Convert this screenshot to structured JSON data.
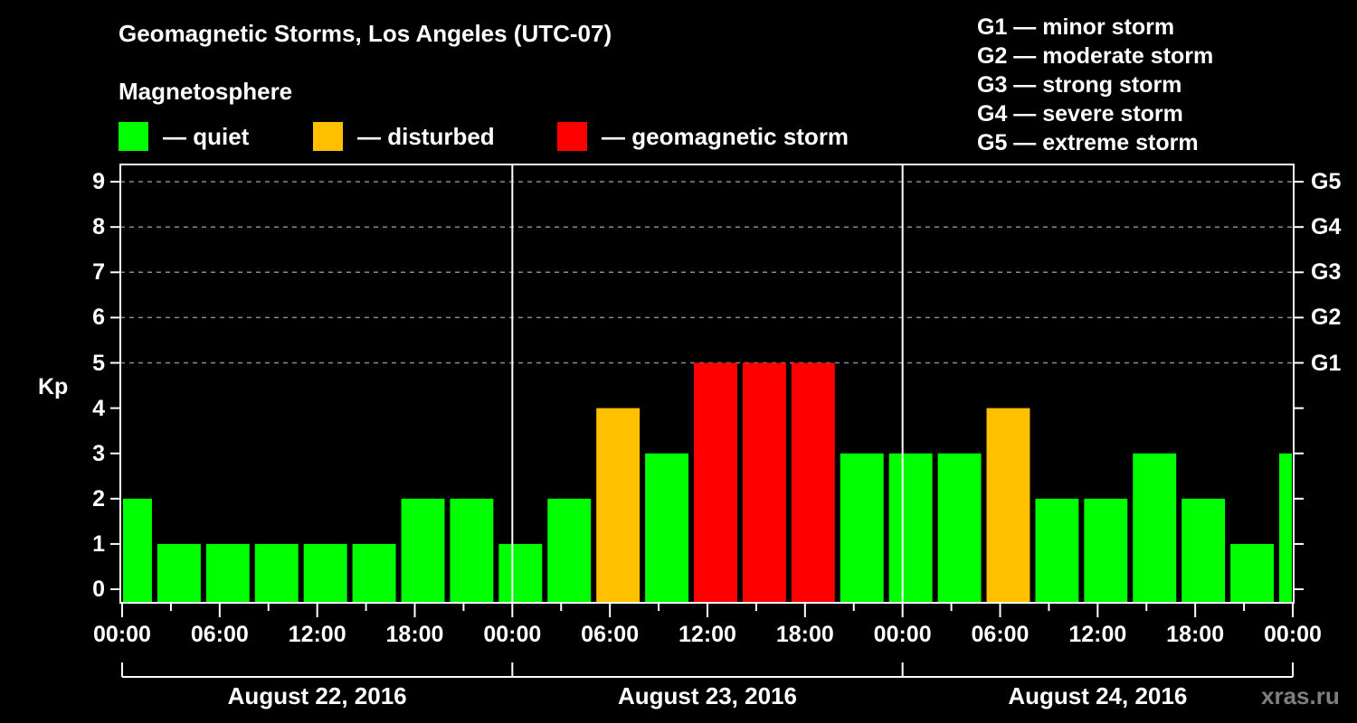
{
  "header": {
    "title": "Geomagnetic Storms, Los Angeles (UTC-07)",
    "subtitle": "Magnetosphere"
  },
  "legend": [
    {
      "label": "— quiet",
      "color": "#00ff00"
    },
    {
      "label": "— disturbed",
      "color": "#ffc000"
    },
    {
      "label": "— geomagnetic storm",
      "color": "#ff0000"
    }
  ],
  "g_scale": [
    "G1 — minor storm",
    "G2 — moderate storm",
    "G3 — strong storm",
    "G4 — severe storm",
    "G5 — extreme storm"
  ],
  "axis": {
    "ylabel": "Kp",
    "yticks": [
      "0",
      "1",
      "2",
      "3",
      "4",
      "5",
      "6",
      "7",
      "8",
      "9"
    ],
    "right_ticks": [
      {
        "kp": 5,
        "label": "G1"
      },
      {
        "kp": 6,
        "label": "G2"
      },
      {
        "kp": 7,
        "label": "G3"
      },
      {
        "kp": 8,
        "label": "G4"
      },
      {
        "kp": 9,
        "label": "G5"
      }
    ],
    "xticks": [
      "00:00",
      "06:00",
      "12:00",
      "18:00",
      "00:00",
      "06:00",
      "12:00",
      "18:00",
      "00:00",
      "06:00",
      "12:00",
      "18:00",
      "00:00"
    ],
    "dates": [
      "August 22, 2016",
      "August 23, 2016",
      "August 24, 2016"
    ]
  },
  "watermark": "xras.ru",
  "colors": {
    "quiet": "#00ff00",
    "disturbed": "#ffc000",
    "storm": "#ff0000",
    "grid": "#8a8a8a",
    "axis": "#ffffff",
    "background": "#000000"
  },
  "chart_data": {
    "type": "bar",
    "title": "Geomagnetic Storms, Los Angeles (UTC-07)",
    "subtitle": "Magnetosphere",
    "xlabel": "",
    "ylabel": "Kp",
    "ylim": [
      0,
      9
    ],
    "grid": "dashed horizontal lines at Kp 5–9",
    "x_range_hours": [
      0,
      72
    ],
    "x_start": "August 22, 2016 00:00",
    "categories": [
      "Aug 22 00:00-02:00",
      "Aug 22 02:00-05:00",
      "Aug 22 05:00-08:00",
      "Aug 22 08:00-11:00",
      "Aug 22 11:00-14:00",
      "Aug 22 14:00-17:00",
      "Aug 22 17:00-20:00",
      "Aug 22 20:00-23:00",
      "Aug 22 23:00-Aug 23 02:00",
      "Aug 23 02:00-05:00",
      "Aug 23 05:00-08:00",
      "Aug 23 08:00-11:00",
      "Aug 23 11:00-14:00",
      "Aug 23 14:00-17:00",
      "Aug 23 17:00-20:00",
      "Aug 23 20:00-23:00",
      "Aug 23 23:00-Aug 24 02:00",
      "Aug 24 02:00-05:00",
      "Aug 24 05:00-08:00",
      "Aug 24 08:00-11:00",
      "Aug 24 11:00-14:00",
      "Aug 24 14:00-17:00",
      "Aug 24 17:00-20:00",
      "Aug 24 20:00-23:00",
      "Aug 24 23:00-Aug 25 00:00"
    ],
    "bars": [
      {
        "start": 0,
        "end": 2,
        "kp": 2,
        "level": "quiet"
      },
      {
        "start": 2,
        "end": 5,
        "kp": 1,
        "level": "quiet"
      },
      {
        "start": 5,
        "end": 8,
        "kp": 1,
        "level": "quiet"
      },
      {
        "start": 8,
        "end": 11,
        "kp": 1,
        "level": "quiet"
      },
      {
        "start": 11,
        "end": 14,
        "kp": 1,
        "level": "quiet"
      },
      {
        "start": 14,
        "end": 17,
        "kp": 1,
        "level": "quiet"
      },
      {
        "start": 17,
        "end": 20,
        "kp": 2,
        "level": "quiet"
      },
      {
        "start": 20,
        "end": 23,
        "kp": 2,
        "level": "quiet"
      },
      {
        "start": 23,
        "end": 26,
        "kp": 1,
        "level": "quiet"
      },
      {
        "start": 26,
        "end": 29,
        "kp": 2,
        "level": "quiet"
      },
      {
        "start": 29,
        "end": 32,
        "kp": 4,
        "level": "disturbed"
      },
      {
        "start": 32,
        "end": 35,
        "kp": 3,
        "level": "quiet"
      },
      {
        "start": 35,
        "end": 38,
        "kp": 5,
        "level": "storm"
      },
      {
        "start": 38,
        "end": 41,
        "kp": 5,
        "level": "storm"
      },
      {
        "start": 41,
        "end": 44,
        "kp": 5,
        "level": "storm"
      },
      {
        "start": 44,
        "end": 47,
        "kp": 3,
        "level": "quiet"
      },
      {
        "start": 47,
        "end": 50,
        "kp": 3,
        "level": "quiet"
      },
      {
        "start": 50,
        "end": 53,
        "kp": 3,
        "level": "quiet"
      },
      {
        "start": 53,
        "end": 56,
        "kp": 4,
        "level": "disturbed"
      },
      {
        "start": 56,
        "end": 59,
        "kp": 2,
        "level": "quiet"
      },
      {
        "start": 59,
        "end": 62,
        "kp": 2,
        "level": "quiet"
      },
      {
        "start": 62,
        "end": 65,
        "kp": 3,
        "level": "quiet"
      },
      {
        "start": 65,
        "end": 68,
        "kp": 2,
        "level": "quiet"
      },
      {
        "start": 68,
        "end": 71,
        "kp": 1,
        "level": "quiet"
      },
      {
        "start": 71,
        "end": 72,
        "kp": 3,
        "level": "quiet"
      }
    ],
    "values": [
      2,
      1,
      1,
      1,
      1,
      1,
      2,
      2,
      1,
      2,
      4,
      3,
      5,
      5,
      5,
      3,
      3,
      3,
      4,
      2,
      2,
      3,
      2,
      1,
      3
    ],
    "legend": [
      "quiet",
      "disturbed",
      "geomagnetic storm"
    ],
    "right_axis_labels": {
      "5": "G1",
      "6": "G2",
      "7": "G3",
      "8": "G4",
      "9": "G5"
    }
  }
}
